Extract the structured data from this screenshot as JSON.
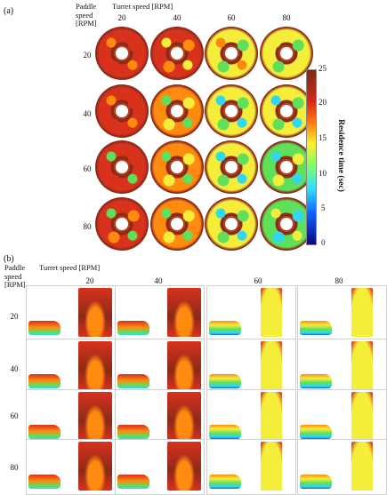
{
  "panel_a": {
    "letter": "(a)",
    "row_header": "Paddle\nspeed\n[RPM]",
    "col_header": "Turret speed [RPM]",
    "col_labels": [
      "20",
      "40",
      "60",
      "80"
    ],
    "row_labels": [
      "20",
      "40",
      "60",
      "80"
    ]
  },
  "colorbar": {
    "title": "Residence time (sec)",
    "ticks": [
      "25",
      "20",
      "15",
      "10",
      "5",
      "0"
    ]
  },
  "panel_b": {
    "letter": "(b)",
    "row_header": "Paddle\nspeed\n[RPM]",
    "col_header": "Turret speed [RPM]",
    "col_labels": [
      "20",
      "40",
      "60",
      "80"
    ],
    "row_labels": [
      "20",
      "40",
      "60",
      "80"
    ]
  },
  "colors": {
    "dark_red": "#8b2a18",
    "red": "#d8321c",
    "orange": "#ff8a10",
    "yellow": "#f4ee3a",
    "green": "#5ee05a",
    "cyan": "#30d8f0",
    "blue": "#1060ff"
  }
}
